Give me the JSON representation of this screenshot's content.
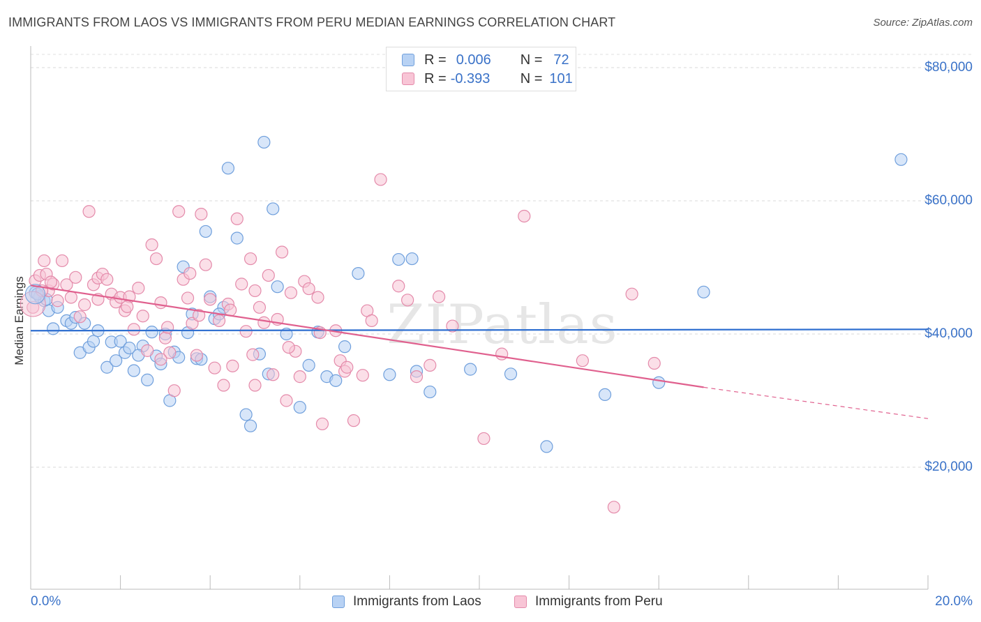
{
  "title": "IMMIGRANTS FROM LAOS VS IMMIGRANTS FROM PERU MEDIAN EARNINGS CORRELATION CHART",
  "source": "Source: ZipAtlas.com",
  "watermark": "ZIPatlas",
  "legend": {
    "r_label": "R =",
    "n_label": "N =",
    "rows": [
      {
        "r": "0.006",
        "n": "72"
      },
      {
        "r": "-0.393",
        "n": "101"
      }
    ]
  },
  "colors": {
    "laos_fill": "#b8d2f4",
    "laos_stroke": "#6f9fdc",
    "laos_line": "#2f6fd0",
    "peru_fill": "#f8c5d6",
    "peru_stroke": "#e48aaa",
    "peru_line": "#e0608e",
    "tick_text": "#3a72c8"
  },
  "chart_data": {
    "type": "scatter",
    "title": "IMMIGRANTS FROM LAOS VS IMMIGRANTS FROM PERU MEDIAN EARNINGS CORRELATION CHART",
    "xlabel": "",
    "ylabel": "Median Earnings",
    "x_tick_labels": [
      "0.0%",
      "20.0%"
    ],
    "y_tick_labels": [
      "$20,000",
      "$40,000",
      "$60,000",
      "$80,000"
    ],
    "y_ticks": [
      20000,
      40000,
      60000,
      80000
    ],
    "xlim": [
      0,
      20
    ],
    "ylim": [
      0,
      82000
    ],
    "grid": true,
    "legend_position": "top-center",
    "series": [
      {
        "name": "Immigrants from Laos",
        "points": [
          [
            0.1,
            46200
          ],
          [
            0.2,
            45600
          ],
          [
            0.3,
            45000
          ],
          [
            0.4,
            43500
          ],
          [
            0.5,
            40800
          ],
          [
            0.6,
            44000
          ],
          [
            0.8,
            42000
          ],
          [
            0.9,
            41600
          ],
          [
            1.0,
            42500
          ],
          [
            1.1,
            37200
          ],
          [
            1.2,
            41600
          ],
          [
            1.3,
            38000
          ],
          [
            1.4,
            38900
          ],
          [
            1.5,
            40500
          ],
          [
            1.7,
            35000
          ],
          [
            1.8,
            38800
          ],
          [
            1.9,
            36000
          ],
          [
            2.0,
            38900
          ],
          [
            2.1,
            37200
          ],
          [
            2.2,
            37900
          ],
          [
            2.3,
            34500
          ],
          [
            2.5,
            38200
          ],
          [
            2.6,
            33100
          ],
          [
            2.7,
            40300
          ],
          [
            2.8,
            36700
          ],
          [
            2.9,
            35500
          ],
          [
            3.0,
            40000
          ],
          [
            3.1,
            30000
          ],
          [
            3.2,
            37300
          ],
          [
            3.4,
            50100
          ],
          [
            3.5,
            40200
          ],
          [
            3.6,
            43000
          ],
          [
            3.7,
            36300
          ],
          [
            3.8,
            36200
          ],
          [
            3.9,
            55400
          ],
          [
            4.0,
            45600
          ],
          [
            4.1,
            42300
          ],
          [
            4.3,
            44000
          ],
          [
            4.4,
            64900
          ],
          [
            4.6,
            54400
          ],
          [
            4.8,
            27900
          ],
          [
            4.9,
            26200
          ],
          [
            5.1,
            37000
          ],
          [
            5.2,
            68800
          ],
          [
            5.3,
            34000
          ],
          [
            5.4,
            58800
          ],
          [
            5.5,
            47100
          ],
          [
            5.7,
            40000
          ],
          [
            6.0,
            29000
          ],
          [
            6.2,
            35300
          ],
          [
            6.4,
            40300
          ],
          [
            6.6,
            33600
          ],
          [
            6.8,
            33000
          ],
          [
            7.0,
            38100
          ],
          [
            7.3,
            49100
          ],
          [
            8.0,
            33900
          ],
          [
            8.2,
            51200
          ],
          [
            8.5,
            51300
          ],
          [
            8.6,
            34400
          ],
          [
            8.9,
            31300
          ],
          [
            9.8,
            34700
          ],
          [
            10.7,
            34000
          ],
          [
            11.5,
            23100
          ],
          [
            12.8,
            30900
          ],
          [
            14.0,
            32700
          ],
          [
            15.0,
            46300
          ],
          [
            19.4,
            66200
          ],
          [
            0.15,
            46000
          ],
          [
            0.35,
            45200
          ],
          [
            2.4,
            36800
          ],
          [
            4.2,
            43000
          ],
          [
            3.3,
            36500
          ]
        ]
      },
      {
        "name": "Immigrants from Peru",
        "points": [
          [
            0.05,
            44000
          ],
          [
            0.1,
            48000
          ],
          [
            0.2,
            48800
          ],
          [
            0.3,
            51000
          ],
          [
            0.35,
            49000
          ],
          [
            0.4,
            46500
          ],
          [
            0.5,
            47500
          ],
          [
            0.6,
            45000
          ],
          [
            0.7,
            51000
          ],
          [
            0.8,
            47400
          ],
          [
            0.9,
            45500
          ],
          [
            1.0,
            48500
          ],
          [
            1.1,
            42600
          ],
          [
            1.2,
            44400
          ],
          [
            1.3,
            58400
          ],
          [
            1.4,
            47400
          ],
          [
            1.5,
            48400
          ],
          [
            1.6,
            49000
          ],
          [
            1.7,
            48200
          ],
          [
            1.8,
            46000
          ],
          [
            1.9,
            44800
          ],
          [
            2.0,
            45500
          ],
          [
            2.1,
            43500
          ],
          [
            2.2,
            45600
          ],
          [
            2.3,
            40700
          ],
          [
            2.4,
            46900
          ],
          [
            2.5,
            42700
          ],
          [
            2.6,
            37500
          ],
          [
            2.7,
            53400
          ],
          [
            2.8,
            51300
          ],
          [
            2.9,
            44700
          ],
          [
            3.0,
            39400
          ],
          [
            3.1,
            37200
          ],
          [
            3.2,
            31500
          ],
          [
            3.3,
            58400
          ],
          [
            3.4,
            48200
          ],
          [
            3.5,
            45400
          ],
          [
            3.6,
            41600
          ],
          [
            3.7,
            36800
          ],
          [
            3.8,
            58000
          ],
          [
            3.9,
            50400
          ],
          [
            4.0,
            45200
          ],
          [
            4.1,
            34900
          ],
          [
            4.2,
            42000
          ],
          [
            4.3,
            32300
          ],
          [
            4.4,
            44500
          ],
          [
            4.5,
            35200
          ],
          [
            4.6,
            57300
          ],
          [
            4.7,
            47500
          ],
          [
            4.8,
            40400
          ],
          [
            4.9,
            51300
          ],
          [
            5.0,
            32300
          ],
          [
            5.1,
            44000
          ],
          [
            5.2,
            41700
          ],
          [
            5.3,
            48800
          ],
          [
            5.4,
            33900
          ],
          [
            5.5,
            42200
          ],
          [
            5.6,
            52300
          ],
          [
            5.7,
            30000
          ],
          [
            5.8,
            46200
          ],
          [
            5.9,
            37400
          ],
          [
            6.0,
            33600
          ],
          [
            6.1,
            47900
          ],
          [
            6.2,
            46800
          ],
          [
            6.4,
            45500
          ],
          [
            6.5,
            26500
          ],
          [
            6.8,
            40500
          ],
          [
            6.9,
            36000
          ],
          [
            7.0,
            34400
          ],
          [
            7.2,
            27000
          ],
          [
            7.4,
            33800
          ],
          [
            7.5,
            43500
          ],
          [
            7.8,
            63200
          ],
          [
            8.2,
            47200
          ],
          [
            8.4,
            45100
          ],
          [
            8.6,
            33600
          ],
          [
            8.9,
            35300
          ],
          [
            9.1,
            45600
          ],
          [
            9.4,
            41200
          ],
          [
            10.1,
            24300
          ],
          [
            10.5,
            37000
          ],
          [
            11.0,
            57700
          ],
          [
            12.3,
            36000
          ],
          [
            13.0,
            14000
          ],
          [
            13.4,
            46000
          ],
          [
            13.9,
            35600
          ],
          [
            0.25,
            46500
          ],
          [
            0.45,
            47800
          ],
          [
            1.5,
            45200
          ],
          [
            2.15,
            44100
          ],
          [
            3.05,
            41000
          ],
          [
            3.55,
            49100
          ],
          [
            4.45,
            43600
          ],
          [
            5.0,
            46500
          ],
          [
            5.75,
            38000
          ],
          [
            6.45,
            40200
          ],
          [
            7.05,
            35000
          ],
          [
            7.6,
            42000
          ],
          [
            2.9,
            36200
          ],
          [
            3.75,
            42800
          ],
          [
            4.95,
            36900
          ]
        ]
      }
    ],
    "trend_lines": [
      {
        "series": "Immigrants from Laos",
        "x": [
          0,
          20
        ],
        "y": [
          40500,
          40700
        ],
        "style": "solid"
      },
      {
        "series": "Immigrants from Peru",
        "x": [
          0,
          15.0
        ],
        "y": [
          47300,
          32000
        ],
        "style": "solid",
        "dashed_extension": {
          "x": [
            15.0,
            20
          ],
          "y": [
            32000,
            27300
          ]
        }
      }
    ]
  },
  "bottom_legend": [
    "Immigrants from Laos",
    "Immigrants from Peru"
  ]
}
